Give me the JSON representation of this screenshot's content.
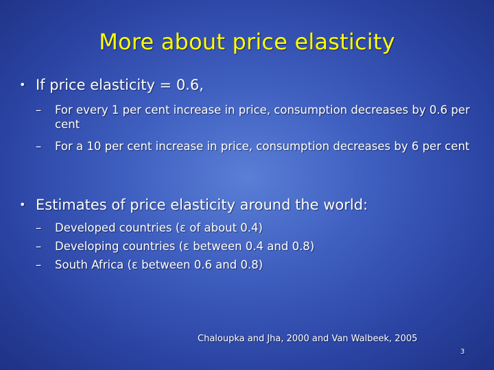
{
  "slide": {
    "title": "More about price elasticity",
    "bullet_glyph": "•",
    "dash_glyph": "–",
    "bullets": [
      {
        "text": "If price elasticity = 0.6,",
        "subitems": [
          "For every 1 per cent increase in price, consumption decreases by 0.6 per cent",
          "For a 10 per cent increase in price, consumption decreases by 6 per cent"
        ]
      },
      {
        "text": "Estimates of price elasticity around the world:",
        "subitems": [
          "Developed countries (ε of about 0.4)",
          "Developing countries (ε between 0.4 and 0.8)",
          "South Africa (ε between 0.6 and 0.8)"
        ]
      }
    ],
    "citation": "Chaloupka and Jha, 2000 and Van Walbeek, 2005",
    "page_number": "3"
  }
}
